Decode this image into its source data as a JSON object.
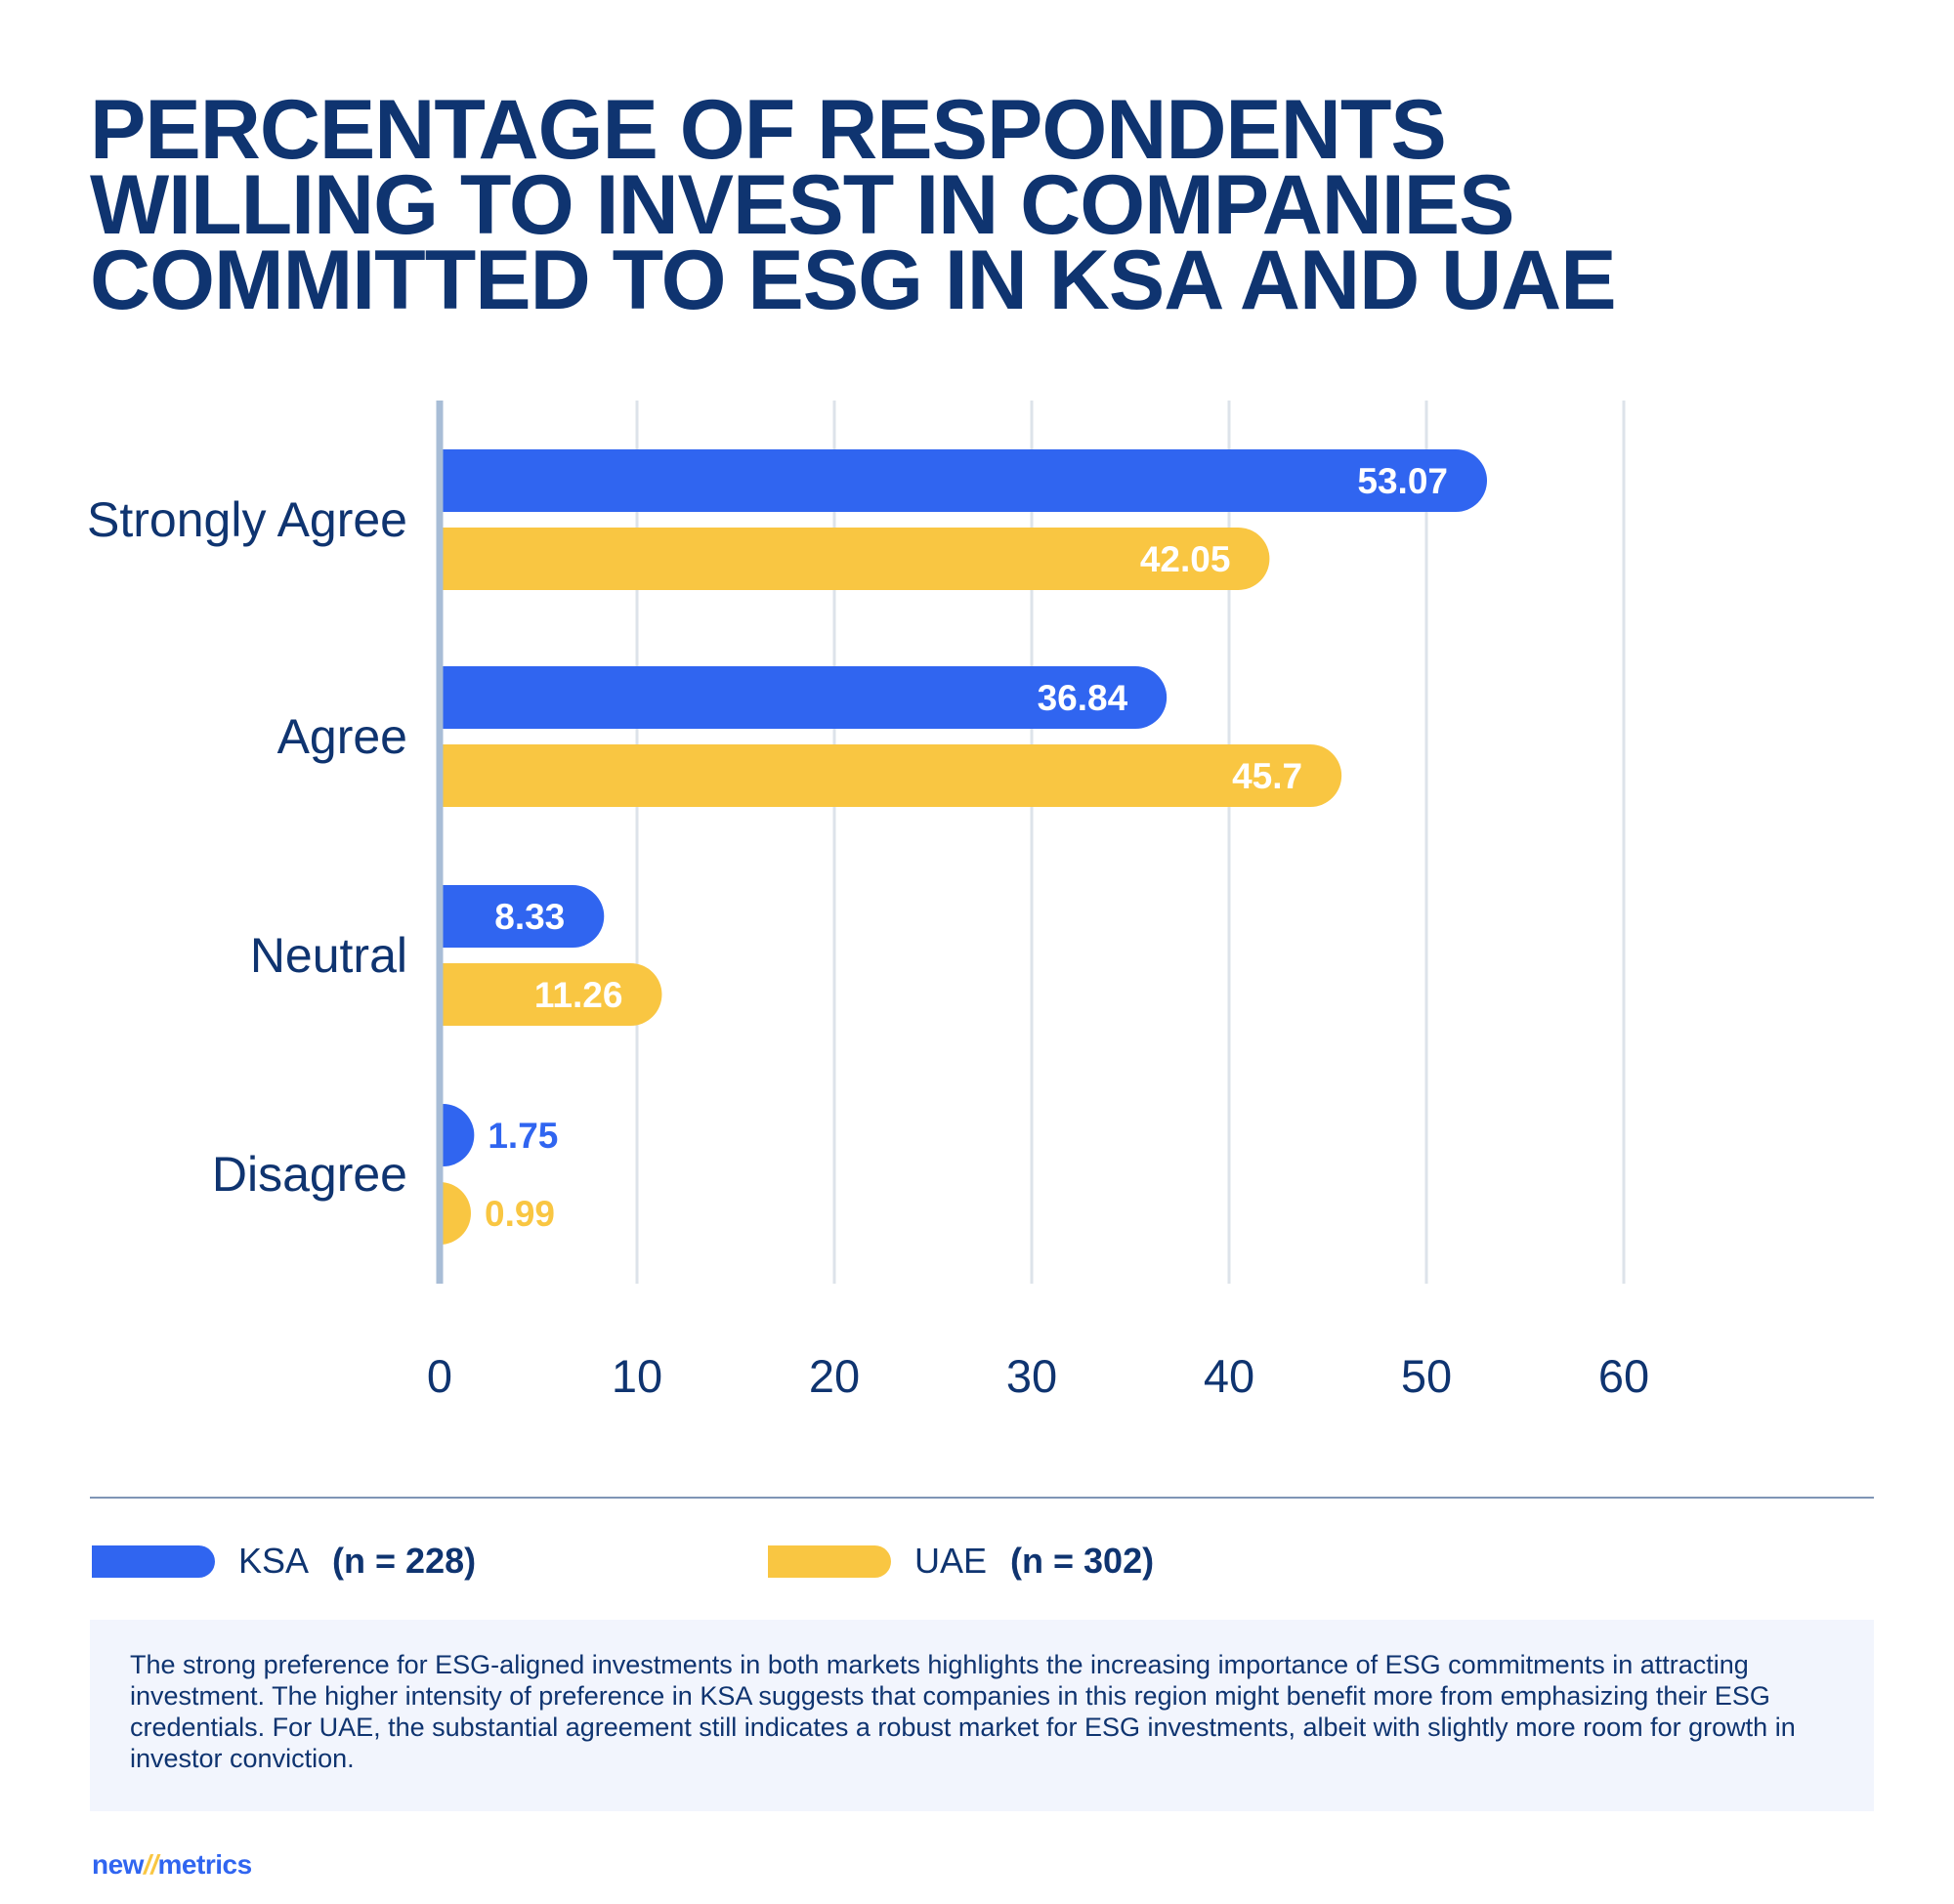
{
  "colors": {
    "ksa": "#3065F0",
    "uae": "#F9C642",
    "navy": "#0F3470",
    "grid": "#DDE3EA",
    "axis": "#A8BDD6"
  },
  "chart_data": {
    "type": "bar",
    "orientation": "horizontal",
    "title": "PERCENTAGE OF RESPONDENTS WILLING TO INVEST IN COMPANIES COMMITTED TO ESG IN KSA AND UAE",
    "categories": [
      "Strongly Agree",
      "Agree",
      "Neutral",
      "Disagree"
    ],
    "series": [
      {
        "name": "KSA",
        "n_label": "(n = 228)",
        "values": [
          53.07,
          36.84,
          8.33,
          1.75
        ],
        "labels": [
          "53.07",
          "36.84",
          "8.33",
          "1.75"
        ]
      },
      {
        "name": "UAE",
        "n_label": "(n = 302)",
        "values": [
          42.05,
          45.7,
          11.26,
          0.99
        ],
        "labels": [
          "42.05",
          "45.7",
          "11.26",
          "0.99"
        ]
      }
    ],
    "xlim": [
      0,
      60
    ],
    "xticks": [
      "0",
      "10",
      "20",
      "30",
      "40",
      "50",
      "60"
    ],
    "grid": true,
    "legend_placement": "bottom-left",
    "xlabel": "",
    "ylabel": ""
  },
  "note": "The strong preference for ESG-aligned investments in both markets highlights the increasing importance of ESG commitments in attracting investment. The higher intensity of preference in KSA suggests that companies in this region might benefit more from emphasizing their ESG credentials. For UAE, the substantial agreement still indicates a robust market for ESG investments, albeit with slightly more room for growth in investor conviction.",
  "logo": {
    "part1": "new",
    "slashes": "//",
    "part2": "metrics"
  }
}
